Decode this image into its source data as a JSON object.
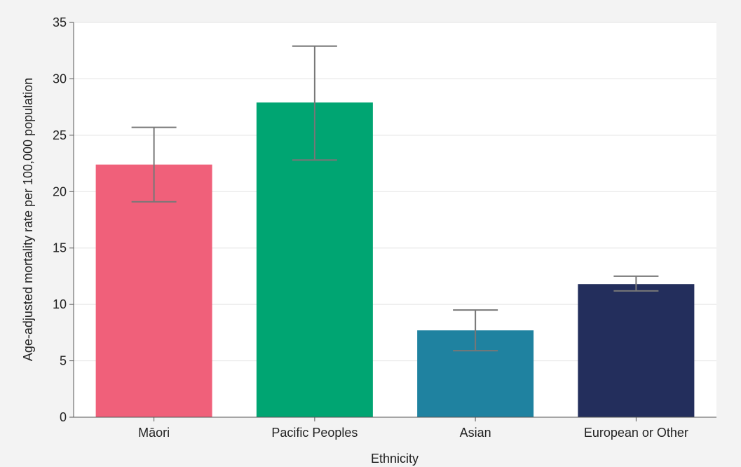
{
  "chart_data": {
    "type": "bar",
    "title": "",
    "xlabel": "Ethnicity",
    "ylabel": "Age-adjusted mortality rate per 100,000 population",
    "ylim": [
      0,
      35
    ],
    "yticks": [
      0,
      5,
      10,
      15,
      20,
      25,
      30,
      35
    ],
    "grid": true,
    "categories": [
      "Māori",
      "Pacific Peoples",
      "Asian",
      "European or Other"
    ],
    "values": [
      22.4,
      27.9,
      7.7,
      11.8
    ],
    "error_low": [
      19.1,
      22.8,
      5.9,
      11.2
    ],
    "error_high": [
      25.7,
      32.9,
      9.5,
      12.5
    ],
    "colors": [
      "#f0607a",
      "#00a572",
      "#1f82a0",
      "#232e5c"
    ],
    "error_bar_color": "#777777",
    "plot_background": "#ffffff",
    "page_background": "#f3f3f3"
  }
}
